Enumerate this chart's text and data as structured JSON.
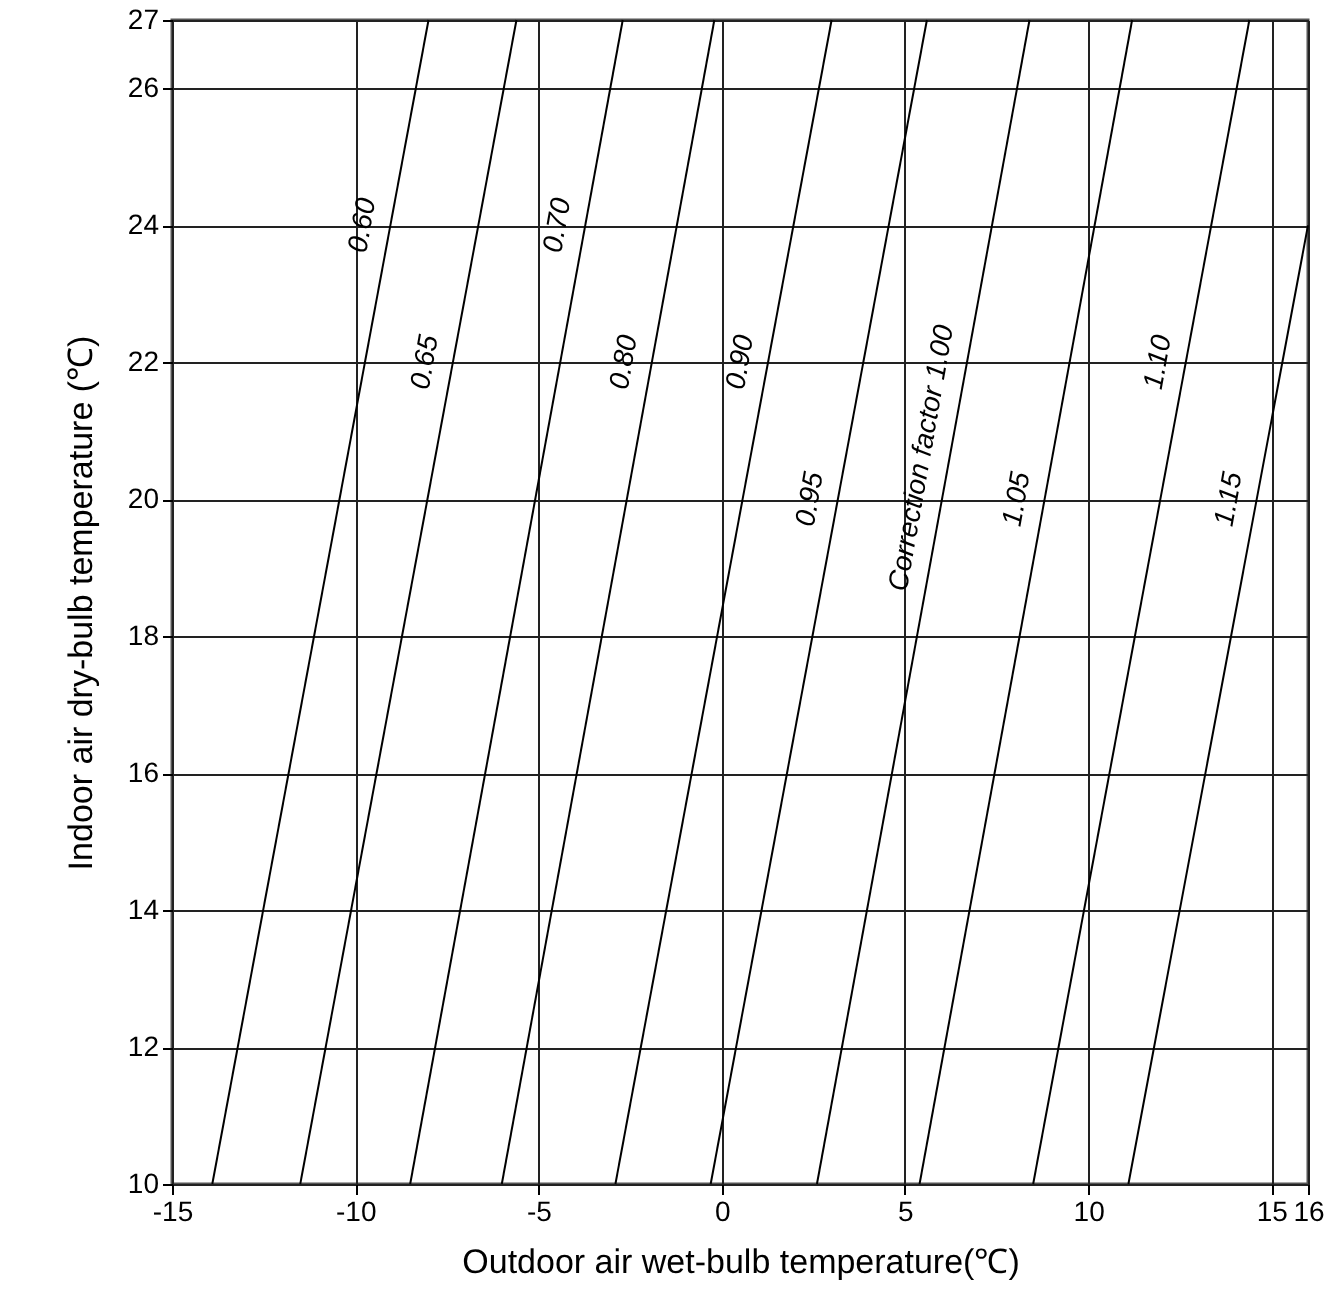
{
  "chart_data": {
    "type": "line",
    "xlabel": "Outdoor air wet-bulb temperature(℃)",
    "ylabel": "Indoor air dry-bulb temperature (℃)",
    "xlim": [
      -15,
      16
    ],
    "ylim": [
      10,
      27
    ],
    "xticks": [
      -15,
      -10,
      -5,
      0,
      5,
      10,
      15,
      16
    ],
    "yticks": [
      10,
      12,
      14,
      16,
      18,
      20,
      22,
      24,
      26,
      27
    ],
    "grid": true,
    "marker": "none",
    "line_style": "solid",
    "series": [
      {
        "name": "0.60",
        "color": "#000000",
        "x": [
          -13.9,
          -8.0
        ],
        "values": [
          10,
          27
        ]
      },
      {
        "name": "0.65",
        "color": "#000000",
        "x": [
          -11.5,
          -5.6
        ],
        "values": [
          10,
          27
        ]
      },
      {
        "name": "0.70",
        "color": "#000000",
        "x": [
          -8.5,
          -2.7
        ],
        "values": [
          10,
          27
        ]
      },
      {
        "name": "0.80",
        "color": "#000000",
        "x": [
          -6.0,
          -0.2
        ],
        "values": [
          10,
          27
        ]
      },
      {
        "name": "0.90",
        "color": "#000000",
        "x": [
          -2.9,
          3.0
        ],
        "values": [
          10,
          27
        ]
      },
      {
        "name": "0.95",
        "color": "#000000",
        "x": [
          -0.3,
          5.6
        ],
        "values": [
          10,
          27
        ]
      },
      {
        "name": "Correction factor 1.00",
        "color": "#000000",
        "x": [
          2.6,
          8.4
        ],
        "values": [
          10,
          27
        ]
      },
      {
        "name": "1.05",
        "color": "#000000",
        "x": [
          5.4,
          11.2
        ],
        "values": [
          10,
          27
        ]
      },
      {
        "name": "1.10",
        "color": "#000000",
        "x": [
          8.5,
          14.4
        ],
        "values": [
          10,
          27
        ]
      },
      {
        "name": "1.15",
        "color": "#000000",
        "x": [
          11.1,
          16.0
        ],
        "values": [
          10,
          24
        ]
      }
    ]
  }
}
